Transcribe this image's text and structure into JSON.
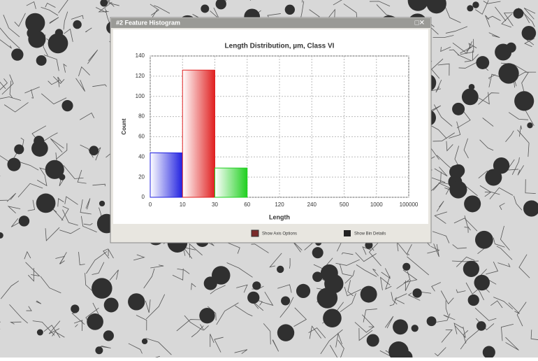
{
  "window": {
    "title": "#2 Feature Histogram",
    "controls": "□✕"
  },
  "chart_data": {
    "type": "histogram",
    "title": "Length Distribution, µm, Class VI",
    "xlabel": "Length",
    "ylabel": "Count",
    "bins": [
      0,
      10,
      30,
      60,
      120,
      240,
      500,
      1000,
      100000
    ],
    "values": [
      44,
      126,
      29,
      0,
      0,
      0,
      0,
      0
    ],
    "colors": [
      "#2020e0",
      "#e02020",
      "#20d020"
    ],
    "ylim": [
      0,
      140
    ],
    "yticks": [
      0,
      20,
      40,
      60,
      80,
      100,
      120,
      140
    ],
    "grid": true
  },
  "buttons": [
    "Show Axis Options",
    "Show Bin Details"
  ]
}
